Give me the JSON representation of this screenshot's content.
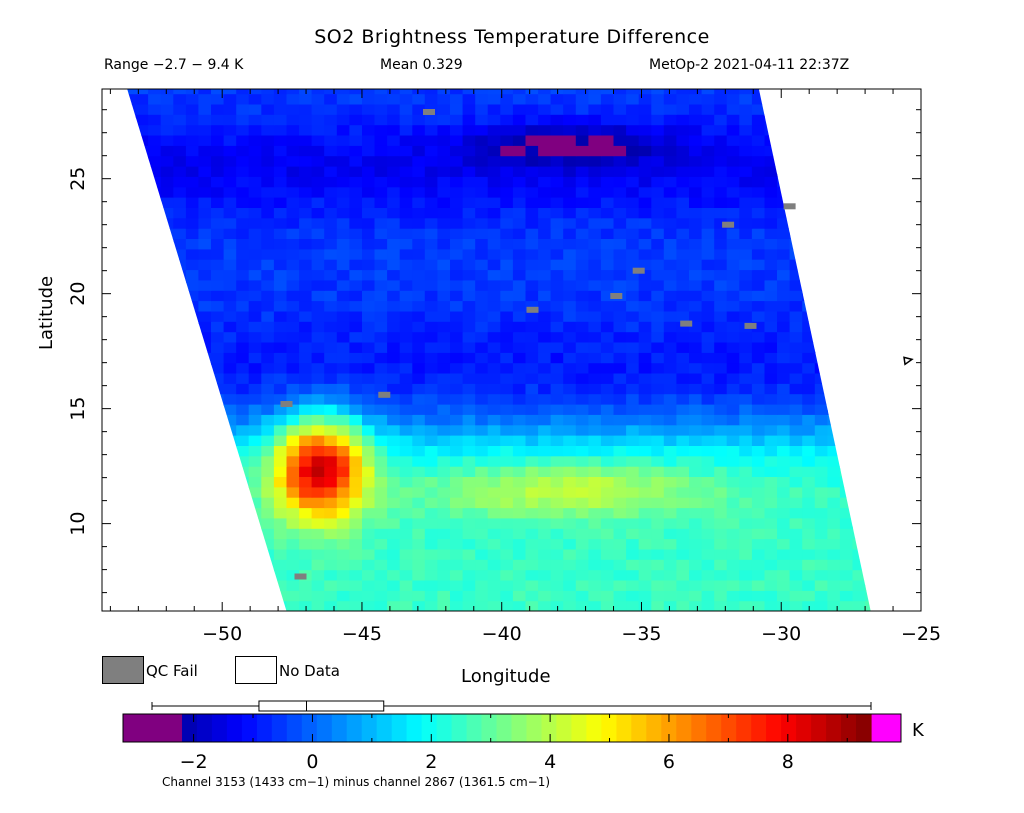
{
  "title": "SO2 Brightness Temperature Difference",
  "header": {
    "range_text": "Range −2.7 − 9.4 K",
    "mean_text": "Mean 0.329",
    "satellite_text": "MetOp-2 2021-04-11 22:37Z"
  },
  "axes": {
    "xlabel": "Longitude",
    "ylabel": "Latitude",
    "lon_range": [
      -54.3,
      -25.0
    ],
    "lat_range": [
      6.2,
      28.9
    ],
    "x_ticks": [
      -50,
      -45,
      -40,
      -35,
      -30,
      -25
    ],
    "y_ticks": [
      10,
      15,
      20,
      25
    ],
    "x_tick_labels": [
      "−50",
      "−45",
      "−40",
      "−35",
      "−30",
      "−25"
    ],
    "y_tick_labels": [
      "10",
      "15",
      "20",
      "25"
    ]
  },
  "swath": {
    "top_left_lon": -53.4,
    "bottom_left_lon": -47.7,
    "top_right_lon": -30.8,
    "bottom_right_lon": -26.8
  },
  "field": {
    "description_regions": [
      {
        "name": "northern-dark-band",
        "lat_center": 25.5,
        "value": -1.3
      },
      {
        "name": "purple-patch",
        "lon_center": -37.5,
        "lat_center": 26.5,
        "value": -2.4
      },
      {
        "name": "central-low",
        "lat_center": 16.5,
        "value": -0.8
      },
      {
        "name": "south-cyan-region",
        "lat_center": 10.5,
        "value": 2.5
      },
      {
        "name": "west-hotspot",
        "lon_center": -46.5,
        "lat_center": 12.5,
        "value": 7.5
      },
      {
        "name": "yellow-band",
        "lon_center": -37.5,
        "lat_center": 11.5,
        "value": 4.5
      }
    ],
    "qc_fail_points": [
      {
        "lon": -42.6,
        "lat": 27.9
      },
      {
        "lon": -31.9,
        "lat": 23.0
      },
      {
        "lon": -29.7,
        "lat": 23.8
      },
      {
        "lon": -35.1,
        "lat": 21.0
      },
      {
        "lon": -35.9,
        "lat": 19.9
      },
      {
        "lon": -38.9,
        "lat": 19.3
      },
      {
        "lon": -33.4,
        "lat": 18.7
      },
      {
        "lon": -31.1,
        "lat": 18.6
      },
      {
        "lon": -44.2,
        "lat": 15.6
      },
      {
        "lon": -47.7,
        "lat": 15.2
      },
      {
        "lon": -47.2,
        "lat": 7.7
      }
    ]
  },
  "island_marker": {
    "lon": -25.5,
    "lat": 17.1
  },
  "legend": {
    "qc_fail_label": "QC Fail",
    "no_data_label": "No Data",
    "qc_color": "#7f7f7f"
  },
  "colorbar": {
    "min": -2.7,
    "max": 9.4,
    "ticks": [
      -2,
      0,
      2,
      4,
      6,
      8
    ],
    "tick_labels": [
      "−2",
      "0",
      "2",
      "4",
      "6",
      "8"
    ],
    "unit": "K",
    "underflow_color": "#800080",
    "overflow_color": "#ff00ff",
    "stops": [
      "#00007f",
      "#0000ff",
      "#0080ff",
      "#00ffff",
      "#80ff80",
      "#ffff00",
      "#ff8000",
      "#ff0000",
      "#7f0000"
    ],
    "boxplot": {
      "whisker_low": -2.7,
      "q1": -0.9,
      "median": -0.1,
      "q3": 1.2,
      "whisker_high": 9.4
    }
  },
  "footnote": "Channel 3153 (1433 cm−1) minus channel 2867 (1361.5 cm−1)"
}
